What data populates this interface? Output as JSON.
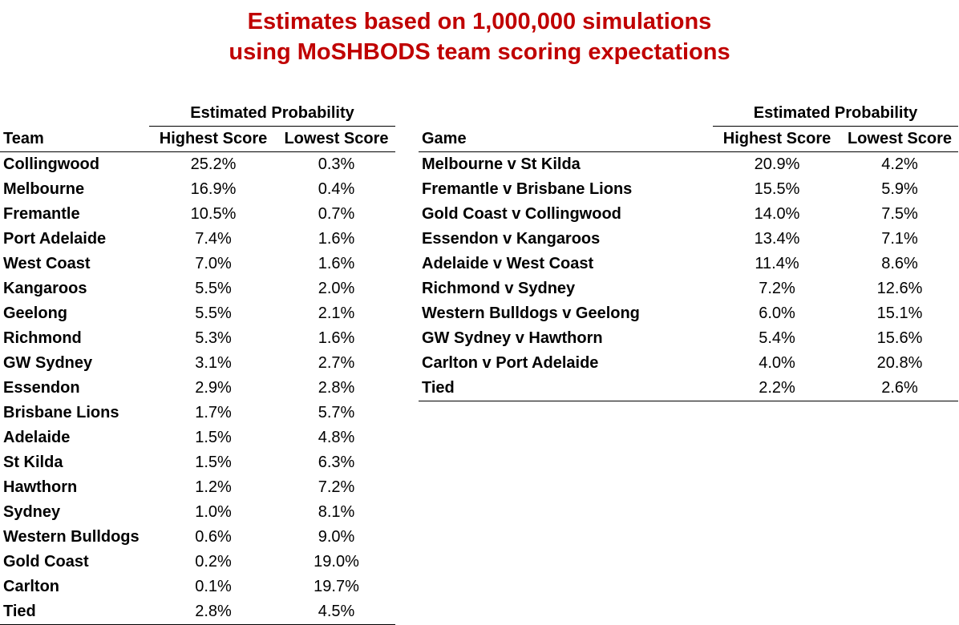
{
  "title": {
    "line1": "Estimates based on 1,000,000 simulations",
    "line2": "using MoSHBODS team scoring expectations"
  },
  "team_table": {
    "group_header": "Estimated Probability",
    "columns": [
      "Team",
      "Highest Score",
      "Lowest Score"
    ],
    "rows": [
      {
        "name": "Collingwood",
        "high": "25.2%",
        "low": "0.3%"
      },
      {
        "name": "Melbourne",
        "high": "16.9%",
        "low": "0.4%"
      },
      {
        "name": "Fremantle",
        "high": "10.5%",
        "low": "0.7%"
      },
      {
        "name": "Port Adelaide",
        "high": "7.4%",
        "low": "1.6%"
      },
      {
        "name": "West Coast",
        "high": "7.0%",
        "low": "1.6%"
      },
      {
        "name": "Kangaroos",
        "high": "5.5%",
        "low": "2.0%"
      },
      {
        "name": "Geelong",
        "high": "5.5%",
        "low": "2.1%"
      },
      {
        "name": "Richmond",
        "high": "5.3%",
        "low": "1.6%"
      },
      {
        "name": "GW Sydney",
        "high": "3.1%",
        "low": "2.7%"
      },
      {
        "name": "Essendon",
        "high": "2.9%",
        "low": "2.8%"
      },
      {
        "name": "Brisbane Lions",
        "high": "1.7%",
        "low": "5.7%"
      },
      {
        "name": "Adelaide",
        "high": "1.5%",
        "low": "4.8%"
      },
      {
        "name": "St Kilda",
        "high": "1.5%",
        "low": "6.3%"
      },
      {
        "name": "Hawthorn",
        "high": "1.2%",
        "low": "7.2%"
      },
      {
        "name": "Sydney",
        "high": "1.0%",
        "low": "8.1%"
      },
      {
        "name": "Western Bulldogs",
        "high": "0.6%",
        "low": "9.0%"
      },
      {
        "name": "Gold Coast",
        "high": "0.2%",
        "low": "19.0%"
      },
      {
        "name": "Carlton",
        "high": "0.1%",
        "low": "19.7%"
      },
      {
        "name": "Tied",
        "high": "2.8%",
        "low": "4.5%"
      }
    ]
  },
  "game_table": {
    "group_header": "Estimated Probability",
    "columns": [
      "Game",
      "Highest Score",
      "Lowest Score"
    ],
    "rows": [
      {
        "name": "Melbourne v St Kilda",
        "high": "20.9%",
        "low": "4.2%"
      },
      {
        "name": "Fremantle v Brisbane Lions",
        "high": "15.5%",
        "low": "5.9%"
      },
      {
        "name": "Gold Coast v Collingwood",
        "high": "14.0%",
        "low": "7.5%"
      },
      {
        "name": "Essendon v Kangaroos",
        "high": "13.4%",
        "low": "7.1%"
      },
      {
        "name": "Adelaide v West Coast",
        "high": "11.4%",
        "low": "8.6%"
      },
      {
        "name": "Richmond v Sydney",
        "high": "7.2%",
        "low": "12.6%"
      },
      {
        "name": "Western Bulldogs v Geelong",
        "high": "6.0%",
        "low": "15.1%"
      },
      {
        "name": "GW Sydney v Hawthorn",
        "high": "5.4%",
        "low": "15.6%"
      },
      {
        "name": "Carlton v Port Adelaide",
        "high": "4.0%",
        "low": "20.8%"
      },
      {
        "name": "Tied",
        "high": "2.2%",
        "low": "2.6%"
      }
    ]
  },
  "colors": {
    "title": "#c00000",
    "text": "#000000",
    "background": "#ffffff"
  }
}
